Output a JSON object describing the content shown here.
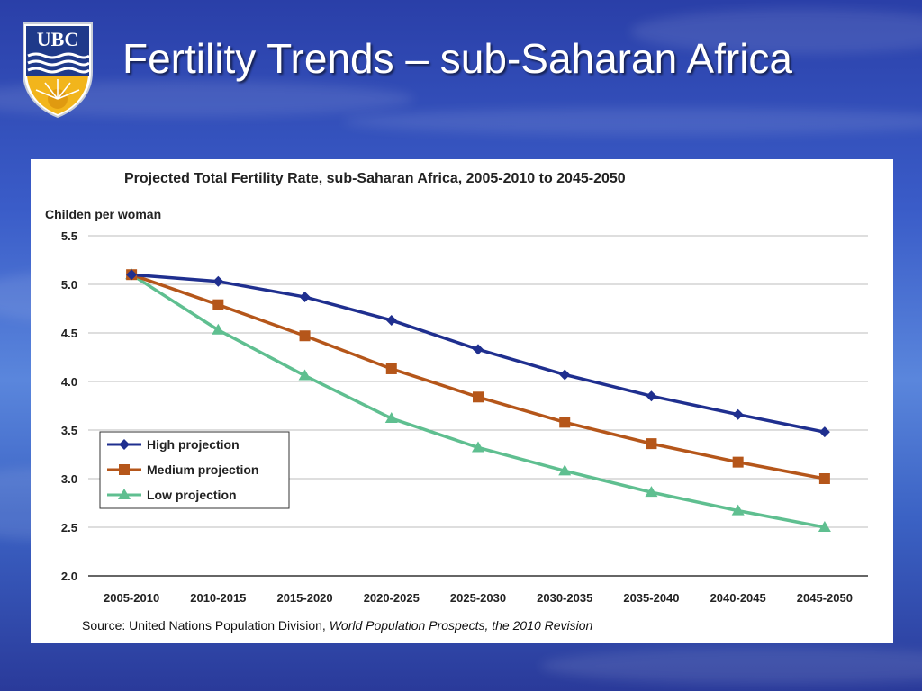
{
  "slide": {
    "title": "Fertility Trends – sub-Saharan Africa",
    "logo_text": "UBC",
    "logo_icon": "ubc-crest-icon"
  },
  "colors": {
    "title_text": "#ffffff",
    "background": "#3a5cc8",
    "high": "#1f2f8f",
    "medium": "#b5561a",
    "low": "#5fbf90"
  },
  "chart_data": {
    "type": "line",
    "title": "Projected Total Fertility Rate, sub-Saharan Africa, 2005-2010 to 2045-2050",
    "ylabel": "Childen per woman",
    "xlabel": "",
    "categories": [
      "2005-2010",
      "2010-2015",
      "2015-2020",
      "2020-2025",
      "2025-2030",
      "2030-2035",
      "2035-2040",
      "2040-2045",
      "2045-2050"
    ],
    "ylim": [
      2.0,
      5.5
    ],
    "yticks": [
      "2.0",
      "2.5",
      "3.0",
      "3.5",
      "4.0",
      "4.5",
      "5.0",
      "5.5"
    ],
    "grid": true,
    "legend_position": "lower-left",
    "series": [
      {
        "name": "High projection",
        "values": [
          5.1,
          5.03,
          4.87,
          4.63,
          4.33,
          4.07,
          3.85,
          3.66,
          3.48
        ],
        "color": "#1f2f8f",
        "marker": "diamond"
      },
      {
        "name": "Medium projection",
        "values": [
          5.1,
          4.79,
          4.47,
          4.13,
          3.84,
          3.58,
          3.36,
          3.17,
          3.0
        ],
        "color": "#b5561a",
        "marker": "square"
      },
      {
        "name": "Low projection",
        "values": [
          5.1,
          4.53,
          4.06,
          3.62,
          3.32,
          3.08,
          2.86,
          2.67,
          2.5
        ],
        "color": "#5fbf90",
        "marker": "triangle"
      }
    ],
    "source_prefix": "Source: United Nations Population Division, ",
    "source_italic": "World Population Prospects, the 2010 Revision"
  }
}
